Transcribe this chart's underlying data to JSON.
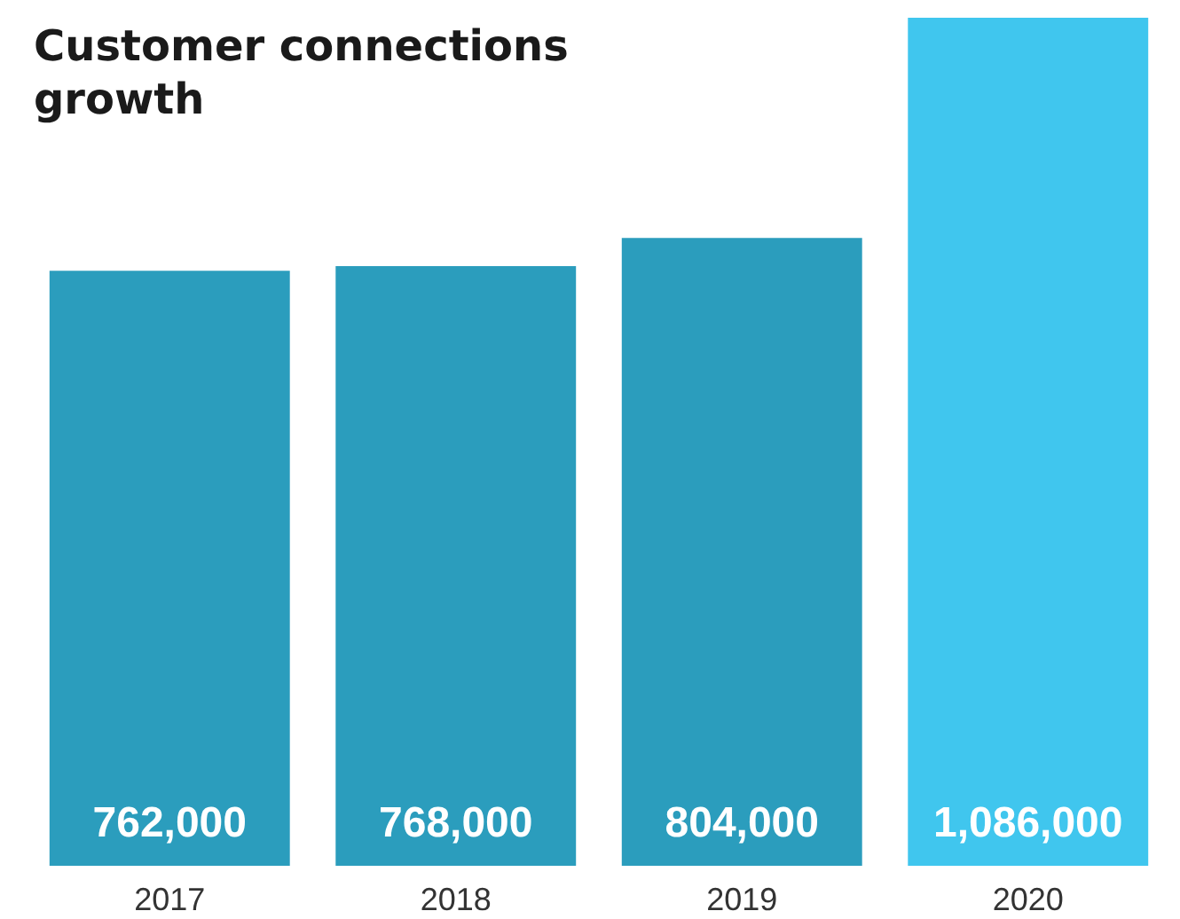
{
  "chart_data": {
    "type": "bar",
    "title": "Customer connections growth",
    "categories": [
      "2017",
      "2018",
      "2019",
      "2020"
    ],
    "values": [
      762000,
      768000,
      804000,
      1086000
    ],
    "colors": [
      "#2b9dbd",
      "#2b9dbd",
      "#2b9dbd",
      "#40c6ee"
    ],
    "value_labels": [
      "762,000",
      "768,000",
      "804,000",
      "1,086,000"
    ]
  }
}
